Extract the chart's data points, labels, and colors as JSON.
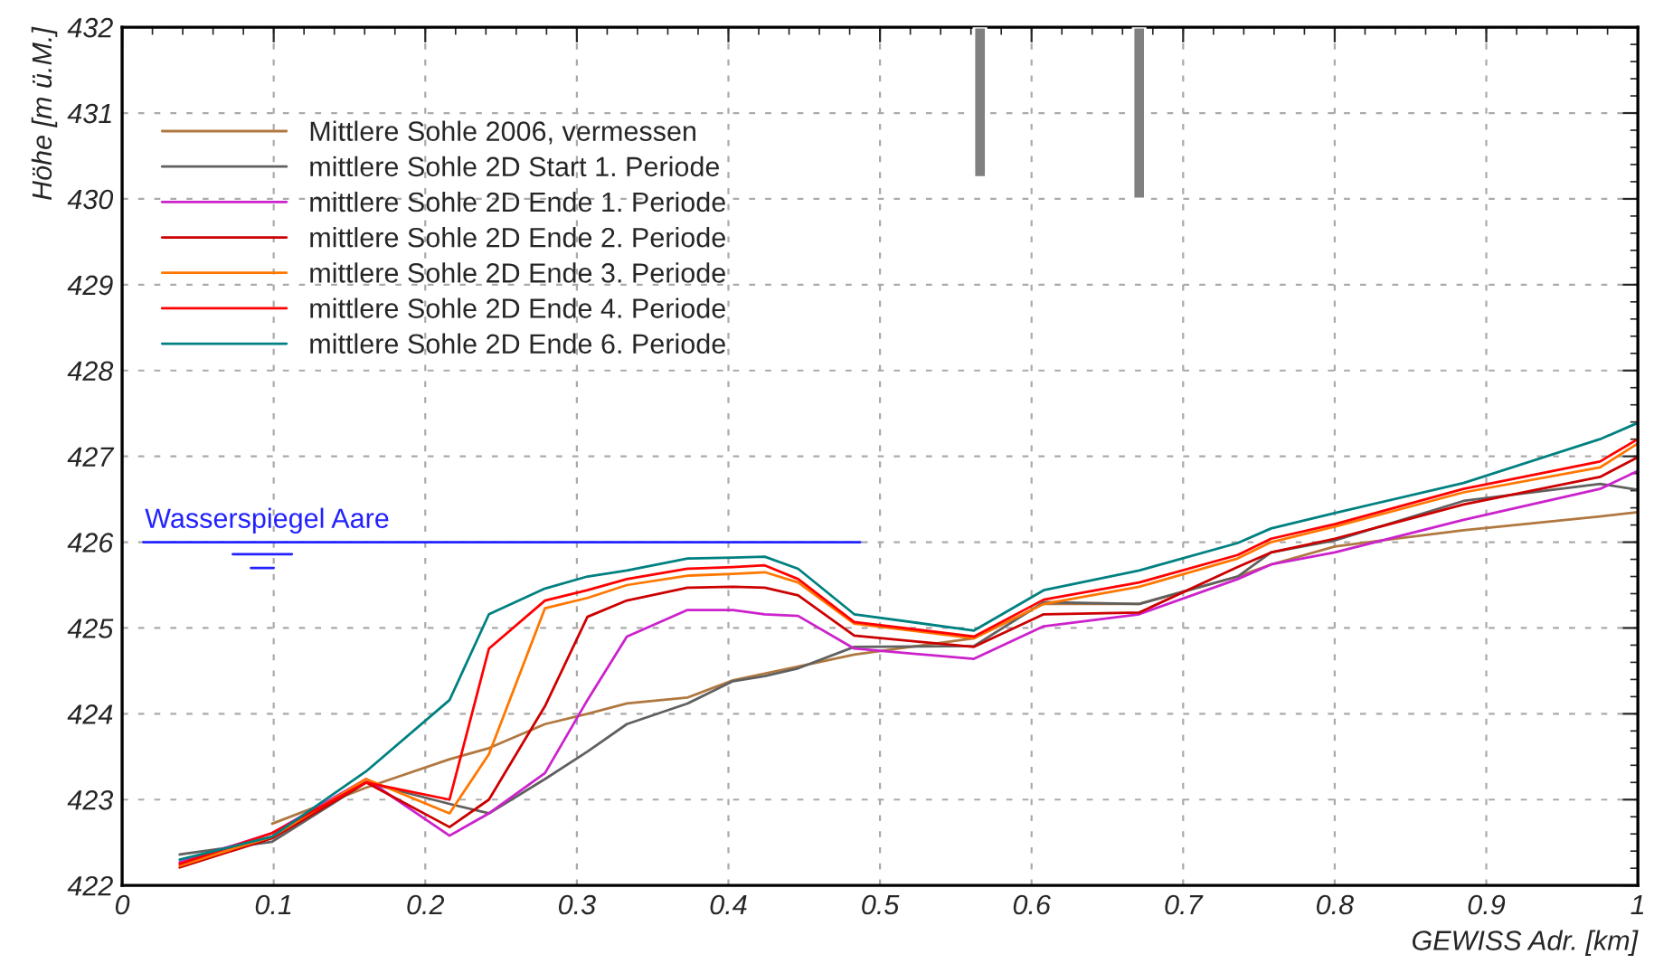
{
  "chart_data": {
    "type": "line",
    "xlabel": "GEWISS Adr. [km]",
    "ylabel": "Höhe [m ü.M.]",
    "x": [
      0.038,
      0.099,
      0.161,
      0.216,
      0.242,
      0.279,
      0.307,
      0.333,
      0.373,
      0.403,
      0.424,
      0.446,
      0.483,
      0.562,
      0.608,
      0.671,
      0.736,
      0.758,
      0.8,
      0.885,
      0.975,
      1.0
    ],
    "series": [
      {
        "name": "Mittlere Sohle 2006, vermessen",
        "color": "#b07840",
        "values": [
          null,
          422.72,
          423.14,
          423.47,
          423.6,
          423.88,
          424.0,
          424.12,
          424.19,
          424.39,
          424.47,
          424.55,
          424.69,
          424.88,
          425.28,
          425.28,
          425.6,
          425.74,
          425.95,
          426.14,
          426.3,
          426.35
        ]
      },
      {
        "name": "mittlere Sohle 2D Start 1. Periode",
        "color": "#606060",
        "values": [
          422.36,
          422.51,
          423.2,
          422.95,
          422.84,
          423.24,
          423.56,
          423.88,
          424.12,
          424.38,
          424.44,
          424.53,
          424.78,
          424.79,
          425.3,
          425.28,
          425.6,
          425.88,
          426.02,
          426.48,
          426.68,
          426.61
        ]
      },
      {
        "name": "mittlere Sohle 2D Ende 1. Periode",
        "color": "#cc22cc",
        "values": [
          422.27,
          422.61,
          423.24,
          422.58,
          422.84,
          423.31,
          424.16,
          424.9,
          425.21,
          425.21,
          425.16,
          425.14,
          424.76,
          424.64,
          425.02,
          425.16,
          425.57,
          425.74,
          425.88,
          426.26,
          426.62,
          426.83
        ]
      },
      {
        "name": "mittlere Sohle 2D Ende 2. Periode",
        "color": "#cc0000",
        "values": [
          422.21,
          422.55,
          423.2,
          422.68,
          423.0,
          424.09,
          425.13,
          425.32,
          425.47,
          425.48,
          425.47,
          425.38,
          424.91,
          424.78,
          425.16,
          425.18,
          425.71,
          425.88,
          426.04,
          426.44,
          426.76,
          426.99
        ]
      },
      {
        "name": "mittlere Sohle 2D Ende 3. Periode",
        "color": "#ff7700",
        "values": [
          422.23,
          422.57,
          423.24,
          422.84,
          423.53,
          425.23,
          425.35,
          425.5,
          425.61,
          425.63,
          425.65,
          425.53,
          425.05,
          424.88,
          425.28,
          425.48,
          425.81,
          426.0,
          426.18,
          426.58,
          426.87,
          427.15
        ]
      },
      {
        "name": "mittlere Sohle 2D Ende 4. Periode",
        "color": "#ff0000",
        "values": [
          422.25,
          422.61,
          423.2,
          423.0,
          424.76,
          425.32,
          425.44,
          425.57,
          425.69,
          425.71,
          425.73,
          425.57,
          425.07,
          424.9,
          425.33,
          425.53,
          425.85,
          426.04,
          426.21,
          426.62,
          426.94,
          427.2
        ]
      },
      {
        "name": "mittlere Sohle 2D Ende 6. Periode",
        "color": "#008080",
        "values": [
          422.3,
          422.57,
          423.33,
          424.16,
          425.16,
          425.46,
          425.6,
          425.67,
          425.81,
          425.82,
          425.83,
          425.69,
          425.16,
          424.97,
          425.44,
          425.67,
          425.99,
          426.16,
          426.34,
          426.69,
          427.2,
          427.39
        ]
      },
      {
        "type": "line",
        "color": "#2222ff",
        "x": [
          0.014,
          0.487
        ],
        "values": [
          426,
          426
        ]
      },
      {
        "type": "bar",
        "color": "#808080",
        "x": [
          0.566,
          0.671
        ],
        "base": [
          430.25,
          430.0
        ],
        "values": [
          1.75,
          2.0
        ]
      }
    ],
    "annotations": [
      {
        "text": "Wasserspiegel Aare",
        "x": 0.015,
        "y": 426.1
      }
    ],
    "xlim": [
      0,
      1
    ],
    "xticks": [
      {
        "value": 0,
        "label": "0"
      },
      0.1,
      0.2,
      0.3,
      0.4,
      0.5,
      0.6,
      0.7,
      0.8,
      0.9,
      {
        "value": 1,
        "label": "1"
      }
    ],
    "ylim": [
      422,
      432
    ],
    "yticks": [
      422,
      423,
      424,
      425,
      426,
      427,
      428,
      429,
      430,
      431,
      432
    ],
    "grid": true,
    "legend": "top left",
    "line_style": "solid",
    "marker": "none"
  }
}
